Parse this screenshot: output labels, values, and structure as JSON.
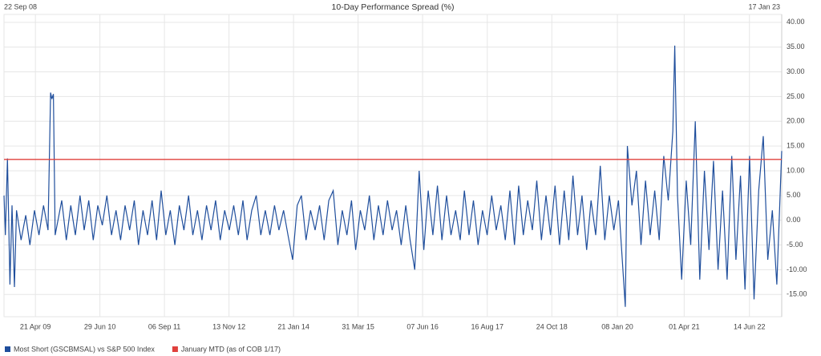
{
  "chart_data": {
    "type": "line",
    "title": "10-Day Performance Spread (%)",
    "xlim": [
      "22 Sep 08",
      "17 Jan 23"
    ],
    "xticks": [
      "21 Apr 09",
      "29 Jun 10",
      "06 Sep 11",
      "13 Nov 12",
      "21 Jan 14",
      "31 Mar 15",
      "07 Jun 16",
      "16 Aug 17",
      "24 Oct 18",
      "08 Jan 20",
      "01 Apr 21",
      "14 Jun 22"
    ],
    "ylim": [
      -19.5,
      41.6
    ],
    "yticks": [
      {
        "value": -15,
        "label": "-15.00"
      },
      {
        "value": -10,
        "label": "-10.00"
      },
      {
        "value": -5,
        "label": "-5.00"
      },
      {
        "value": 0,
        "label": "0.00"
      },
      {
        "value": 5,
        "label": "5.00"
      },
      {
        "value": 10,
        "label": "10.00"
      },
      {
        "value": 15,
        "label": "15.00"
      },
      {
        "value": 20,
        "label": "20.00"
      },
      {
        "value": 25,
        "label": "25.00"
      },
      {
        "value": 30,
        "label": "30.00"
      },
      {
        "value": 35,
        "label": "35.00"
      },
      {
        "value": 40,
        "label": "40.00"
      }
    ],
    "grid": true,
    "series": [
      {
        "name": "Most Short (GSCBMSAL) vs S&P 500 Index",
        "color": "#1f4e9c",
        "x": [
          "22 Sep 08",
          "01 Oct 08",
          "15 Oct 08",
          "01 Nov 08",
          "15 Nov 08",
          "01 Dec 08",
          "15 Dec 08",
          "15 Jan 09",
          "15 Feb 09",
          "15 Mar 09",
          "15 Apr 09",
          "15 May 09",
          "15 Jun 09",
          "15 Jul 09",
          "01 Aug 09",
          "10 Aug 09",
          "20 Aug 09",
          "01 Sep 09",
          "15 Oct 09",
          "15 Nov 09",
          "15 Dec 09",
          "15 Jan 10",
          "15 Feb 10",
          "15 Mar 10",
          "15 Apr 10",
          "15 May 10",
          "15 Jun 10",
          "15 Jul 10",
          "15 Aug 10",
          "15 Sep 10",
          "15 Oct 10",
          "15 Nov 10",
          "15 Dec 10",
          "15 Jan 11",
          "15 Feb 11",
          "15 Mar 11",
          "15 Apr 11",
          "15 May 11",
          "15 Jun 11",
          "15 Jul 11",
          "15 Aug 11",
          "15 Sep 11",
          "15 Oct 11",
          "15 Nov 11",
          "15 Dec 11",
          "15 Jan 12",
          "15 Feb 12",
          "15 Mar 12",
          "15 Apr 12",
          "15 May 12",
          "15 Jun 12",
          "15 Jul 12",
          "15 Aug 12",
          "15 Sep 12",
          "15 Oct 12",
          "15 Nov 12",
          "15 Dec 12",
          "15 Jan 13",
          "15 Feb 13",
          "15 Mar 13",
          "15 Apr 13",
          "15 May 13",
          "15 Jun 13",
          "15 Jul 13",
          "15 Aug 13",
          "15 Sep 13",
          "15 Oct 13",
          "15 Nov 13",
          "15 Dec 13",
          "15 Jan 14",
          "15 Feb 14",
          "15 Mar 14",
          "15 Apr 14",
          "15 May 14",
          "15 Jun 14",
          "15 Jul 14",
          "15 Aug 14",
          "15 Sep 14",
          "15 Oct 14",
          "15 Nov 14",
          "15 Dec 14",
          "15 Jan 15",
          "15 Feb 15",
          "15 Mar 15",
          "15 Apr 15",
          "15 May 15",
          "15 Jun 15",
          "15 Jul 15",
          "15 Aug 15",
          "15 Sep 15",
          "15 Oct 15",
          "15 Nov 15",
          "15 Dec 15",
          "15 Jan 16",
          "15 Feb 16",
          "15 Mar 16",
          "15 Apr 16",
          "15 May 16",
          "15 Jun 16",
          "15 Jul 16",
          "15 Aug 16",
          "15 Sep 16",
          "15 Oct 16",
          "15 Nov 16",
          "15 Dec 16",
          "15 Jan 17",
          "15 Feb 17",
          "15 Mar 17",
          "15 Apr 17",
          "15 May 17",
          "15 Jun 17",
          "15 Jul 17",
          "15 Aug 17",
          "15 Sep 17",
          "15 Oct 17",
          "15 Nov 17",
          "15 Dec 17",
          "15 Jan 18",
          "15 Feb 18",
          "15 Mar 18",
          "15 Apr 18",
          "15 May 18",
          "15 Jun 18",
          "15 Jul 18",
          "15 Aug 18",
          "15 Sep 18",
          "15 Oct 18",
          "15 Nov 18",
          "15 Dec 18",
          "15 Jan 19",
          "15 Feb 19",
          "15 Mar 19",
          "15 Apr 19",
          "15 May 19",
          "15 Jun 19",
          "15 Jul 19",
          "15 Aug 19",
          "15 Sep 19",
          "15 Oct 19",
          "15 Nov 19",
          "15 Dec 19",
          "15 Jan 20",
          "01 Mar 20",
          "15 Mar 20",
          "15 Apr 20",
          "15 May 20",
          "15 Jun 20",
          "15 Jul 20",
          "15 Aug 20",
          "15 Sep 20",
          "15 Oct 20",
          "15 Nov 20",
          "15 Dec 20",
          "15 Jan 21",
          "28 Jan 21",
          "15 Feb 21",
          "15 Mar 21",
          "15 Apr 21",
          "15 May 21",
          "15 Jun 21",
          "15 Jul 21",
          "15 Aug 21",
          "15 Sep 21",
          "15 Oct 21",
          "15 Nov 21",
          "15 Dec 21",
          "15 Jan 22",
          "15 Feb 22",
          "15 Mar 22",
          "15 Apr 22",
          "15 May 22",
          "15 Jun 22",
          "15 Jul 22",
          "15 Aug 22",
          "15 Sep 22",
          "15 Oct 22",
          "15 Nov 22",
          "15 Dec 22",
          "17 Jan 23"
        ],
        "values": [
          5,
          -3,
          12.5,
          -13,
          3,
          -13.5,
          2,
          -4,
          1,
          -5,
          2,
          -3,
          3,
          -2,
          25.8,
          24.5,
          25.5,
          -3,
          4,
          -4,
          3,
          -3,
          5,
          -2,
          4,
          -4,
          3,
          -1,
          5,
          -3,
          2,
          -4,
          3,
          -2,
          4,
          -5,
          2,
          -3,
          4,
          -4,
          6,
          -3,
          2,
          -5,
          3,
          -2,
          5,
          -3,
          2,
          -4,
          3,
          -2,
          4,
          -4,
          2,
          -2,
          3,
          -3,
          4,
          -4,
          2,
          5,
          -3,
          2,
          -3,
          3,
          -2,
          2,
          -3,
          -8,
          3,
          5,
          -4,
          2,
          -2,
          3,
          -4,
          4,
          6,
          -5,
          2,
          -3,
          4,
          -6,
          2,
          -2,
          5,
          -4,
          3,
          -3,
          4,
          -2,
          2,
          -5,
          3,
          -4,
          -10,
          10,
          -6,
          6,
          -3,
          7,
          -4,
          5,
          -3,
          2,
          -4,
          6,
          -3,
          4,
          -5,
          2,
          -3,
          5,
          -2,
          3,
          -4,
          6,
          -5,
          7,
          -3,
          4,
          -2,
          8,
          -4,
          5,
          -3,
          7,
          -5,
          6,
          -4,
          9,
          -3,
          5,
          -6,
          4,
          -3,
          11,
          -4,
          5,
          -2,
          4,
          -17.5,
          15,
          3,
          10,
          -5,
          8,
          -3,
          6,
          -4,
          13,
          4,
          18,
          35.3,
          5,
          -12,
          8,
          -5,
          20,
          -12,
          10,
          -6,
          12,
          -10,
          6,
          -12,
          13,
          -8,
          9,
          -14,
          13,
          -16,
          6,
          17,
          -8,
          2,
          -13,
          14
        ]
      },
      {
        "name": "January MTD (as of COB 1/17)",
        "color": "#e0403c",
        "x": [
          "22 Sep 08",
          "17 Jan 23"
        ],
        "values": [
          12.3,
          12.3
        ]
      }
    ]
  }
}
